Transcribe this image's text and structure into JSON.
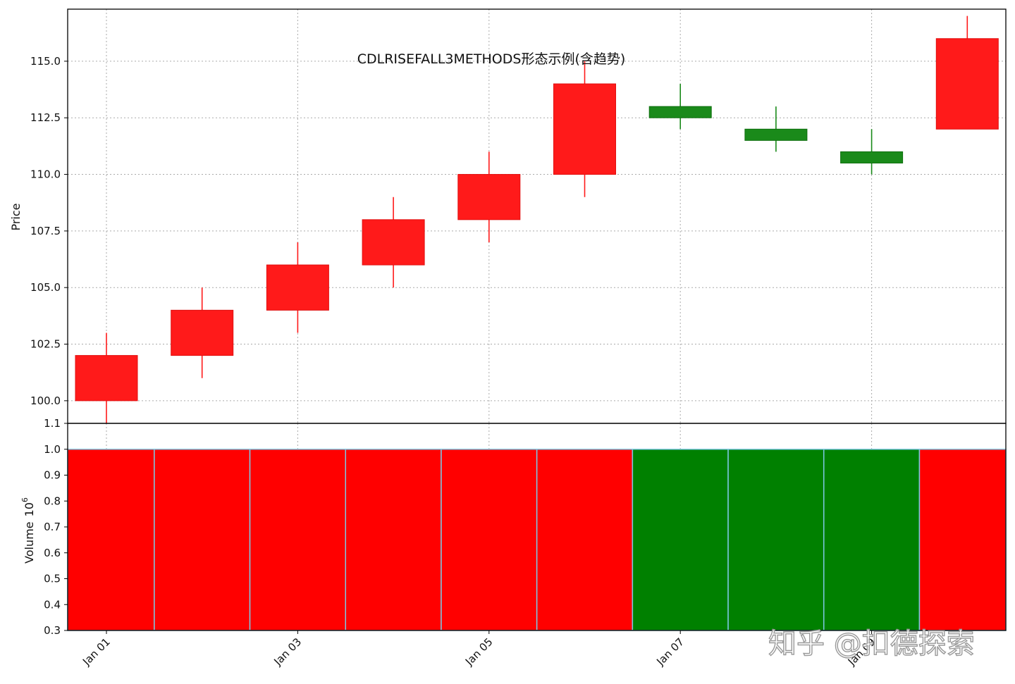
{
  "watermark": "知乎 @扣德探索",
  "chart_data": [
    {
      "type": "candlestick",
      "title": "CDLRISEFALL3METHODS形态示例(含趋势)",
      "ylabel": "Price",
      "ylim": [
        99.0,
        117.3
      ],
      "yticks": [
        "100.0",
        "102.5",
        "105.0",
        "107.5",
        "110.0",
        "112.5",
        "115.0"
      ],
      "grid": true,
      "colors": {
        "up": "#ff1a1a",
        "down": "#1a8a1a"
      },
      "candles": [
        {
          "date": "Jan 01",
          "open": 100.0,
          "high": 103.0,
          "low": 99.0,
          "close": 102.0
        },
        {
          "date": "Jan 02",
          "open": 102.0,
          "high": 105.0,
          "low": 101.0,
          "close": 104.0
        },
        {
          "date": "Jan 03",
          "open": 104.0,
          "high": 107.0,
          "low": 103.0,
          "close": 106.0
        },
        {
          "date": "Jan 04",
          "open": 106.0,
          "high": 109.0,
          "low": 105.0,
          "close": 108.0
        },
        {
          "date": "Jan 05",
          "open": 108.0,
          "high": 111.0,
          "low": 107.0,
          "close": 110.0
        },
        {
          "date": "Jan 06",
          "open": 110.0,
          "high": 115.0,
          "low": 109.0,
          "close": 114.0
        },
        {
          "date": "Jan 07",
          "open": 113.0,
          "high": 114.0,
          "low": 112.0,
          "close": 112.5
        },
        {
          "date": "Jan 08",
          "open": 112.0,
          "high": 113.0,
          "low": 111.0,
          "close": 111.5
        },
        {
          "date": "Jan 09",
          "open": 111.0,
          "high": 112.0,
          "low": 110.0,
          "close": 110.5
        },
        {
          "date": "Jan 10",
          "open": 112.0,
          "high": 117.0,
          "low": 112.0,
          "close": 116.0
        }
      ]
    },
    {
      "type": "bar",
      "ylabel": "Volume",
      "yscale_label": "10",
      "yscale_exponent": "6",
      "ylim": [
        0.3,
        1.1
      ],
      "yticks": [
        "0.3",
        "0.4",
        "0.5",
        "0.6",
        "0.7",
        "0.8",
        "0.9",
        "1.0",
        "1.1"
      ],
      "xticks": [
        "Jan 01",
        "Jan 03",
        "Jan 05",
        "Jan 07",
        "Jan 09"
      ],
      "colors": {
        "up": "#ff0000",
        "down": "#008000",
        "edge": "#7ec8e3"
      },
      "values": [
        1.0,
        1.0,
        1.0,
        1.0,
        1.0,
        1.0,
        1.0,
        1.0,
        1.0,
        1.0
      ],
      "directions": [
        "up",
        "up",
        "up",
        "up",
        "up",
        "up",
        "down",
        "down",
        "down",
        "up"
      ]
    }
  ]
}
